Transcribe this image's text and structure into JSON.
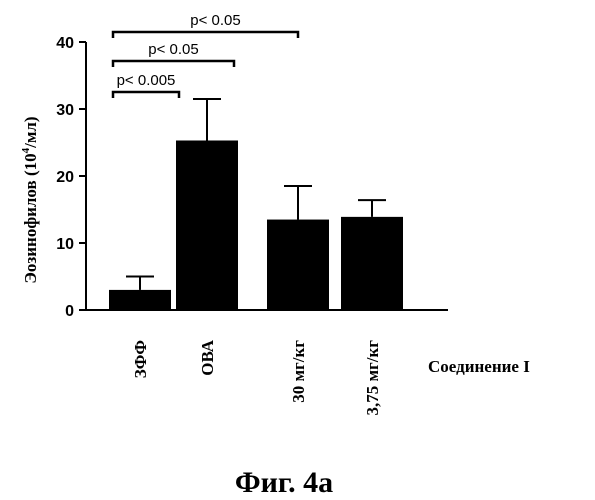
{
  "chart_data": {
    "type": "bar",
    "ylabel_main": "Эозинофилов (10",
    "ylabel_sup": "4",
    "ylabel_end": "/мл)",
    "yticks": [
      "0",
      "10",
      "20",
      "30",
      "40"
    ],
    "ylim": [
      0,
      40
    ],
    "categories": [
      "ЗФФ",
      "ОВА",
      "30 мг/кг",
      "3,75 мг/кг"
    ],
    "values": [
      3.0,
      25.3,
      13.5,
      13.9
    ],
    "errors": [
      2.0,
      6.2,
      5.0,
      2.5
    ],
    "group_label": "Соединение I",
    "bar_color": "#000000",
    "significance": [
      {
        "label": "p< 0.005",
        "from": 0,
        "to": 1
      },
      {
        "label": "p< 0.05",
        "from": 0,
        "to": 2
      },
      {
        "label": "p< 0.05",
        "from": 0,
        "to": 3
      }
    ]
  },
  "caption": "Фиг. 4а"
}
